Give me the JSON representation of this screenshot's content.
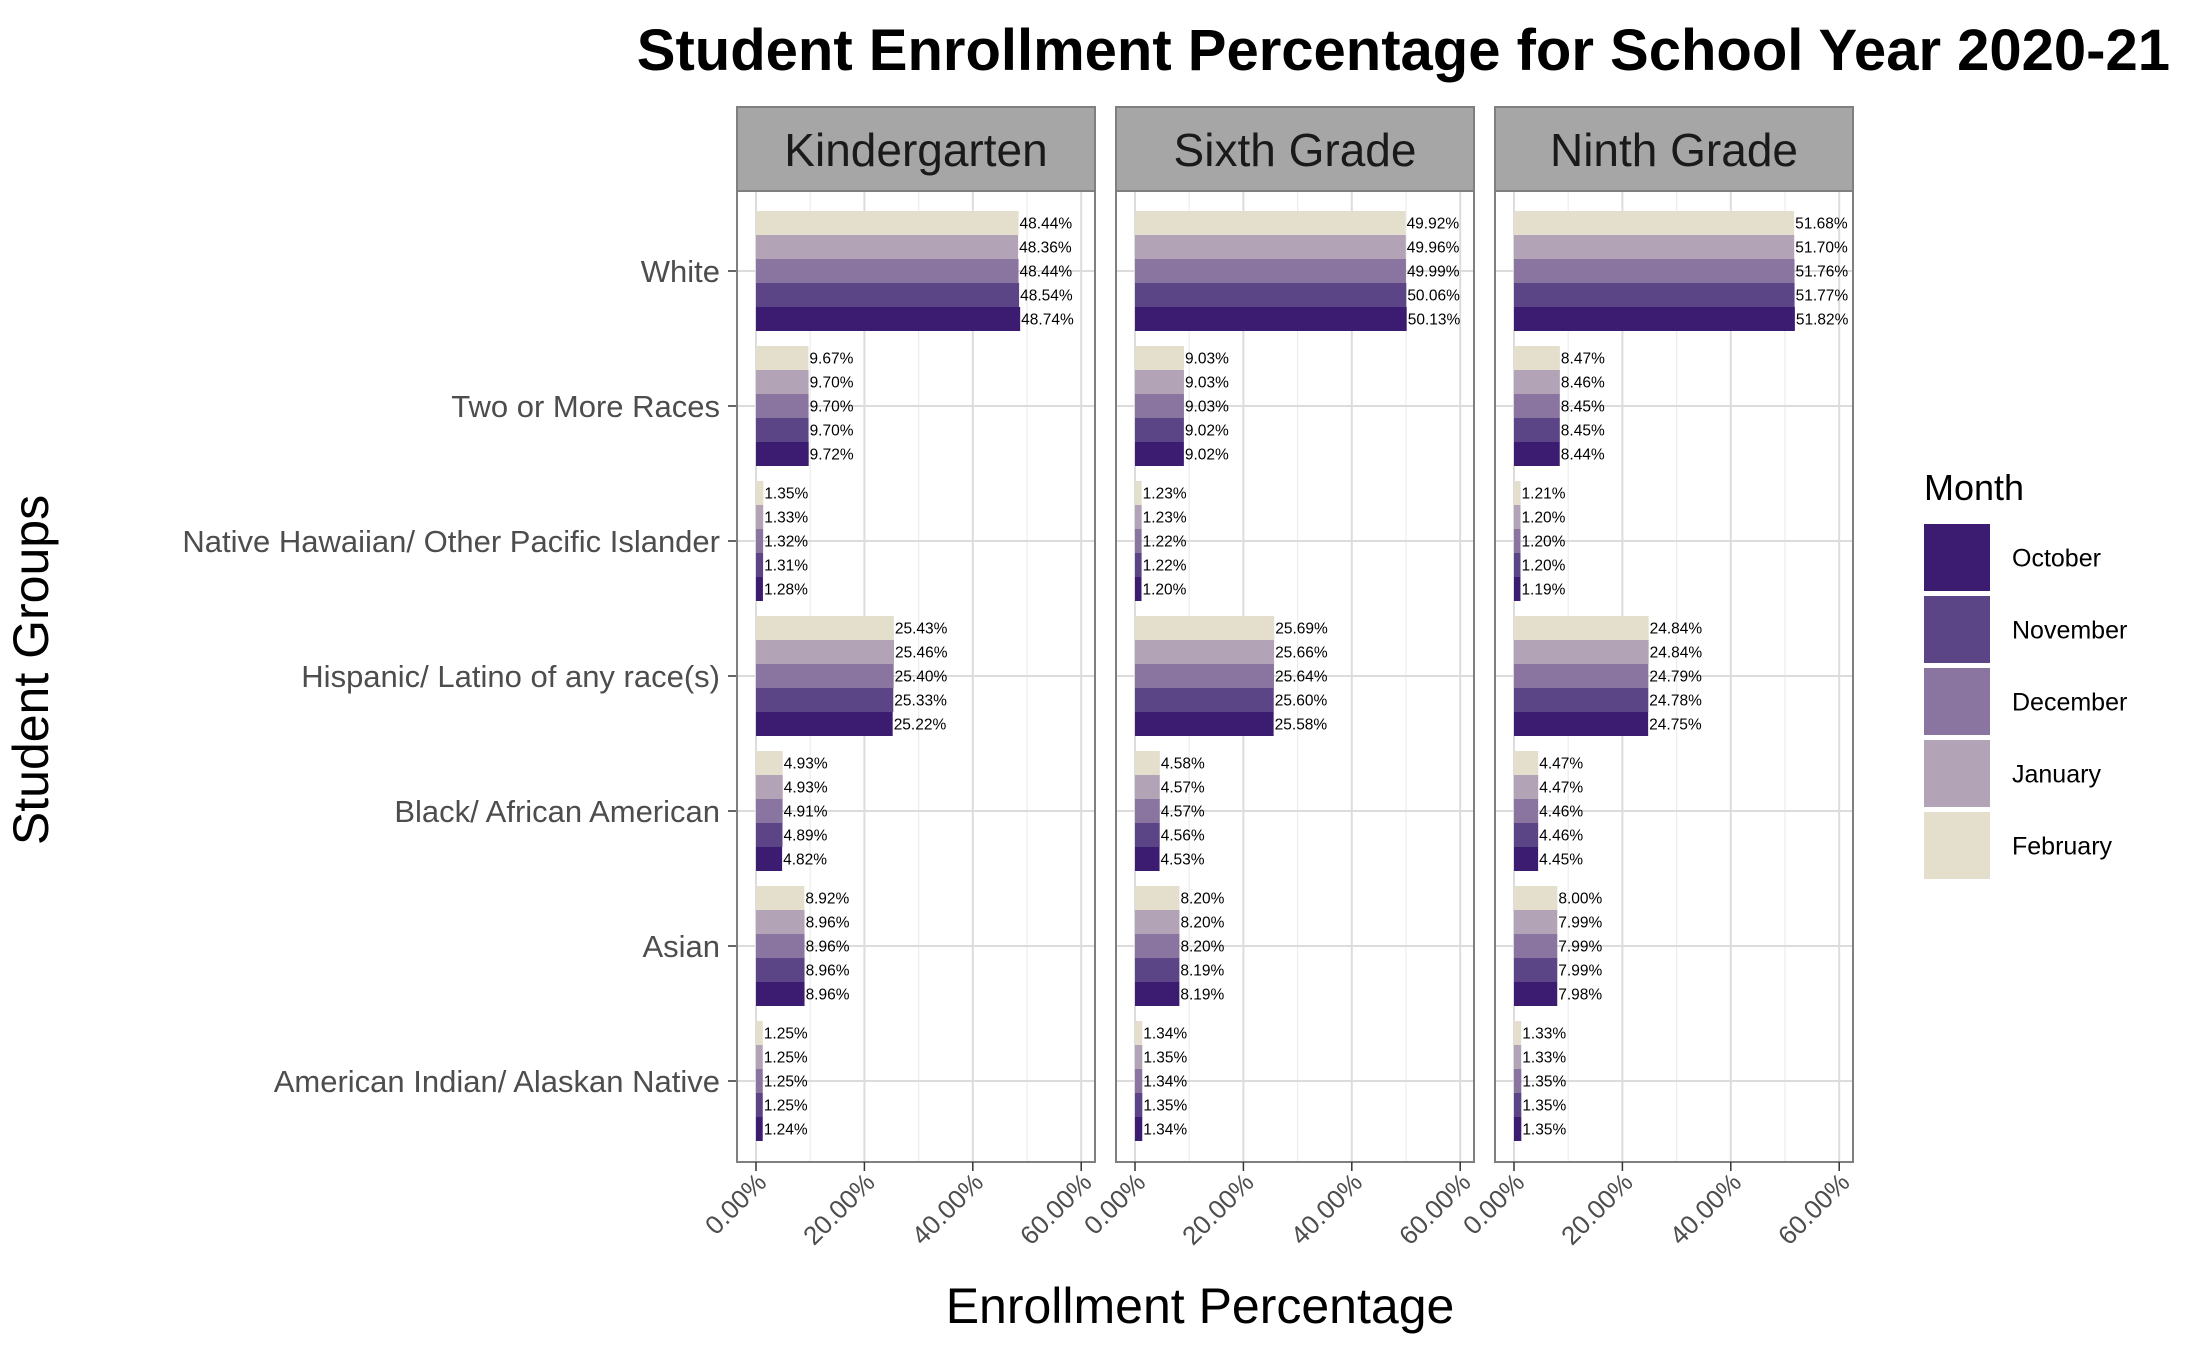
{
  "chart_data": {
    "type": "bar",
    "orientation": "horizontal",
    "title": "Student Enrollment Percentage for School Year 2020-21",
    "xlabel": "Enrollment Percentage",
    "ylabel": "Student Groups",
    "xlim": [
      0,
      62
    ],
    "x_ticks": [
      0,
      20,
      40,
      60
    ],
    "x_tick_labels": [
      "0.00%",
      "20.00%",
      "40.00%",
      "60.00%"
    ],
    "grid": true,
    "legend_position": "right",
    "legend_title": "Month",
    "months": [
      "October",
      "November",
      "December",
      "January",
      "February"
    ],
    "month_colors": {
      "October": "#3b1c70",
      "November": "#5b4587",
      "December": "#8a75a1",
      "January": "#b3a3b7",
      "February": "#e3dfcc"
    },
    "categories": [
      "White",
      "Two or More Races",
      "Native Hawaiian/ Other Pacific Islander",
      "Hispanic/ Latino of any race(s)",
      "Black/ African American",
      "Asian",
      "American Indian/ Alaskan Native"
    ],
    "facets": [
      {
        "name": "Kindergarten",
        "series": [
          {
            "name": "October",
            "values": [
              48.74,
              9.72,
              1.28,
              25.22,
              4.82,
              8.96,
              1.24
            ]
          },
          {
            "name": "November",
            "values": [
              48.54,
              9.7,
              1.31,
              25.33,
              4.89,
              8.96,
              1.25
            ]
          },
          {
            "name": "December",
            "values": [
              48.44,
              9.7,
              1.32,
              25.4,
              4.91,
              8.96,
              1.25
            ]
          },
          {
            "name": "January",
            "values": [
              48.36,
              9.7,
              1.33,
              25.46,
              4.93,
              8.96,
              1.25
            ]
          },
          {
            "name": "February",
            "values": [
              48.44,
              9.67,
              1.35,
              25.43,
              4.93,
              8.92,
              1.25
            ]
          }
        ]
      },
      {
        "name": "Sixth Grade",
        "series": [
          {
            "name": "October",
            "values": [
              50.13,
              9.02,
              1.2,
              25.58,
              4.53,
              8.19,
              1.34
            ]
          },
          {
            "name": "November",
            "values": [
              50.06,
              9.02,
              1.22,
              25.6,
              4.56,
              8.19,
              1.35
            ]
          },
          {
            "name": "December",
            "values": [
              49.99,
              9.03,
              1.22,
              25.64,
              4.57,
              8.2,
              1.34
            ]
          },
          {
            "name": "January",
            "values": [
              49.96,
              9.03,
              1.23,
              25.66,
              4.57,
              8.2,
              1.35
            ]
          },
          {
            "name": "February",
            "values": [
              49.92,
              9.03,
              1.23,
              25.69,
              4.58,
              8.2,
              1.34
            ]
          }
        ]
      },
      {
        "name": "Ninth Grade",
        "series": [
          {
            "name": "October",
            "values": [
              51.82,
              8.44,
              1.19,
              24.75,
              4.45,
              7.98,
              1.35
            ]
          },
          {
            "name": "November",
            "values": [
              51.77,
              8.45,
              1.2,
              24.78,
              4.46,
              7.99,
              1.35
            ]
          },
          {
            "name": "December",
            "values": [
              51.76,
              8.45,
              1.2,
              24.79,
              4.46,
              7.99,
              1.35
            ]
          },
          {
            "name": "January",
            "values": [
              51.7,
              8.46,
              1.2,
              24.84,
              4.47,
              7.99,
              1.33
            ]
          },
          {
            "name": "February",
            "values": [
              51.68,
              8.47,
              1.21,
              24.84,
              4.47,
              8.0,
              1.33
            ]
          }
        ]
      }
    ]
  }
}
